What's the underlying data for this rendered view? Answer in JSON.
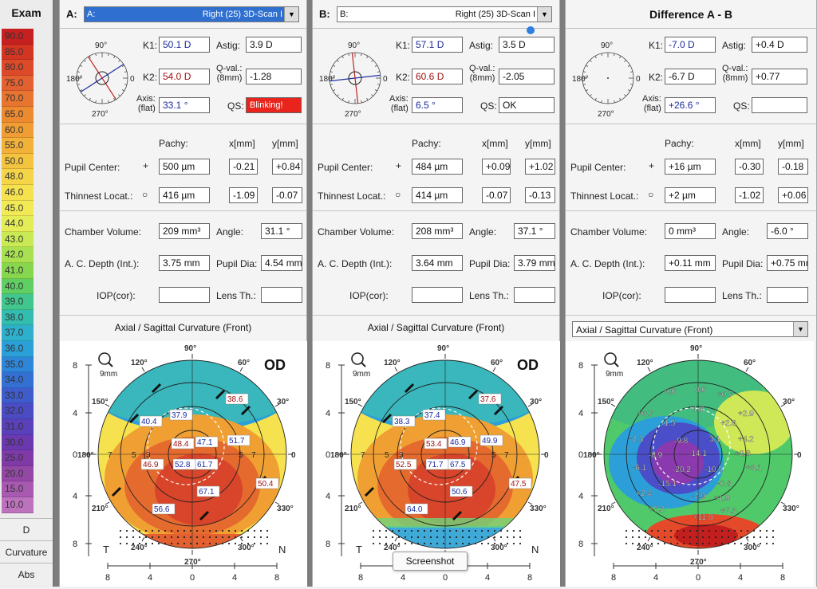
{
  "scale": {
    "title": "Exam",
    "values": [
      "90.0",
      "85.0",
      "80.0",
      "75.0",
      "70.0",
      "65.0",
      "60.0",
      "55.0",
      "50.0",
      "48.0",
      "46.0",
      "45.0",
      "44.0",
      "43.0",
      "42.0",
      "41.0",
      "40.0",
      "39.0",
      "38.0",
      "37.0",
      "36.0",
      "35.0",
      "34.0",
      "33.0",
      "32.0",
      "31.0",
      "30.0",
      "25.0",
      "20.0",
      "15.0",
      "10.0"
    ],
    "colors": [
      "#c62020",
      "#d43522",
      "#dc4a2a",
      "#e36030",
      "#e8752f",
      "#ec8a30",
      "#f09e33",
      "#f2b239",
      "#f4c43e",
      "#f5d447",
      "#f6e24f",
      "#f2ea55",
      "#e4ec56",
      "#c9ea54",
      "#a8e04f",
      "#86d64e",
      "#5fcf63",
      "#41c78d",
      "#33bdb0",
      "#2cb0cc",
      "#2b9fd8",
      "#2d86d8",
      "#3470d4",
      "#3f5ccd",
      "#4b4bc4",
      "#5a40bb",
      "#6b38b0",
      "#7f3aa8",
      "#9448a6",
      "#a85ab0",
      "#bd72bd"
    ],
    "unit_btn": "D",
    "curv_btn": "Curvature",
    "abs_btn": "Abs"
  },
  "panels": [
    {
      "label": "A:",
      "combo_left": "A:",
      "combo_right": "Right  (25) 3D-Scan I",
      "k1_label": "K1:",
      "k1": "50.1 D",
      "k2_label": "K2:",
      "k2": "54.0 D",
      "axis_label": "Axis:\n(flat)",
      "axis": "33.1 °",
      "astig_label": "Astig:",
      "astig": "3.9 D",
      "qval_label": "Q-val.:\n(8mm)",
      "qval": "-1.28",
      "qs_label": "QS:",
      "qs": "Blinking!",
      "pachy_h": "Pachy:",
      "x_h": "x[mm]",
      "y_h": "y[mm]",
      "pupil_label": "Pupil Center:",
      "pupil_pachy": "500 µm",
      "pupil_x": "-0.21",
      "pupil_y": "+0.84",
      "thin_label": "Thinnest Locat.:",
      "thin_pachy": "416 µm",
      "thin_x": "-1.09",
      "thin_y": "-0.07",
      "chamber_label": "Chamber Volume:",
      "chamber": "209 mm³",
      "angle_label": "Angle:",
      "angle": "31.1 °",
      "acd_label": "A. C. Depth (Int.):",
      "acd": "3.75 mm",
      "pupdia_label": "Pupil Dia:",
      "pupdia": "4.54 mm",
      "iop_label": "IOP(cor):",
      "iop": "",
      "lens_label": "Lens Th.:",
      "lens": "",
      "map_title": "Axial / Sagittal Curvature (Front)",
      "eye": "OD",
      "zoom": "9mm",
      "labels": [
        "38.6",
        "40.4",
        "37.9",
        "48.4",
        "47.1",
        "51.7",
        "46.9",
        "52.8",
        "61.7",
        "50.4",
        "67.1",
        "56.6"
      ]
    },
    {
      "label": "B:",
      "combo_left": "B:",
      "combo_right": "Right  (25) 3D-Scan I",
      "k1_label": "K1:",
      "k1": "57.1 D",
      "k2_label": "K2:",
      "k2": "60.6 D",
      "axis_label": "Axis:\n(flat)",
      "axis": "6.5 °",
      "astig_label": "Astig:",
      "astig": "3.5 D",
      "qval_label": "Q-val.:\n(8mm)",
      "qval": "-2.05",
      "qs_label": "QS:",
      "qs": "OK",
      "pachy_h": "Pachy:",
      "x_h": "x[mm]",
      "y_h": "y[mm]",
      "pupil_label": "Pupil Center:",
      "pupil_pachy": "484 µm",
      "pupil_x": "+0.09",
      "pupil_y": "+1.02",
      "thin_label": "Thinnest Locat.:",
      "thin_pachy": "414 µm",
      "thin_x": "-0.07",
      "thin_y": "-0.13",
      "chamber_label": "Chamber Volume:",
      "chamber": "208 mm³",
      "angle_label": "Angle:",
      "angle": "37.1 °",
      "acd_label": "A. C. Depth (Int.):",
      "acd": "3.64 mm",
      "pupdia_label": "Pupil Dia:",
      "pupdia": "3.79 mm",
      "iop_label": "IOP(cor):",
      "iop": "",
      "lens_label": "Lens Th.:",
      "lens": "",
      "map_title": "Axial / Sagittal Curvature (Front)",
      "eye": "OD",
      "zoom": "9mm",
      "labels": [
        "37.6",
        "38.3",
        "37.4",
        "53.4",
        "46.9",
        "49.9",
        "52.5",
        "71.7",
        "67.5",
        "47.5",
        "50.6",
        "64.0"
      ]
    },
    {
      "title": "Difference A - B",
      "k1_label": "K1:",
      "k1": "-7.0 D",
      "k2_label": "K2:",
      "k2": "-6.7 D",
      "axis_label": "Axis:\n(flat)",
      "axis": "+26.6 °",
      "astig_label": "Astig:",
      "astig": "+0.4 D",
      "qval_label": "Q-val.:\n(8mm)",
      "qval": "+0.77",
      "qs_label": "QS:",
      "qs": "",
      "pachy_h": "Pachy:",
      "x_h": "x[mm]",
      "y_h": "y[mm]",
      "pupil_label": "Pupil Center:",
      "pupil_pachy": "+16 µm",
      "pupil_x": "-0.30",
      "pupil_y": "-0.18",
      "thin_label": "Thinnest Locat.:",
      "thin_pachy": "+2 µm",
      "thin_x": "-1.02",
      "thin_y": "+0.06",
      "chamber_label": "Chamber Volume:",
      "chamber": "0 mm³",
      "angle_label": "Angle:",
      "angle": "-6.0 °",
      "acd_label": "A. C. Depth (Int.):",
      "acd": "+0.11 mm",
      "pupdia_label": "Pupil Dia:",
      "pupdia": "+0.75 mm",
      "iop_label": "IOP(cor):",
      "iop": "",
      "lens_label": "Lens Th.:",
      "lens": "",
      "map_title": "Axial / Sagittal Curvature (Front)",
      "zoom": "9mm",
      "labels": [
        "0.0",
        "0.0",
        "+0.7",
        "+0.7",
        "-1.0",
        "+2.9",
        "-1.5",
        "+2.6",
        "-2.3",
        "-9.8",
        "3.1",
        "+4.2",
        "-8.9",
        "-14.1",
        "+2.8",
        "-6.1",
        "-20.2",
        "-10.5",
        "+3.1",
        "-15.1",
        "-0.8",
        "+2.4",
        "-7.9",
        "+1.9",
        "+7.2",
        "+7.3",
        "+11.0"
      ]
    }
  ],
  "map_axis": {
    "angles": [
      "90°",
      "120°",
      "150°",
      "180°",
      "210°",
      "240°",
      "270°",
      "300°",
      "330°",
      "0",
      "30°",
      "60°"
    ],
    "ticks_v": [
      "8",
      "4",
      "0",
      "4",
      "8"
    ],
    "ticks_h": [
      "8",
      "4",
      "0",
      "4",
      "8"
    ],
    "temporal": "T",
    "nasal": "N",
    "ring_labels": [
      "7",
      "5",
      "3",
      "5",
      "7"
    ]
  },
  "polar_labels": [
    "90°",
    "180°",
    "270°",
    "0"
  ],
  "tooltip": "Screenshot"
}
